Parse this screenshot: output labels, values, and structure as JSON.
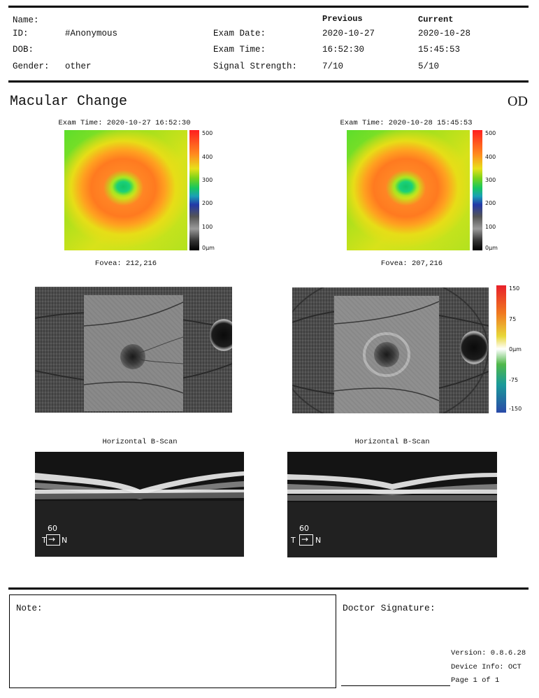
{
  "header": {
    "labels": {
      "name": "Name:",
      "id": "ID:",
      "dob": "DOB:",
      "gender": "Gender:",
      "exam_date": "Exam Date:",
      "exam_time": "Exam Time:",
      "signal_strength": "Signal Strength:"
    },
    "patient": {
      "name": "",
      "id": "#Anonymous",
      "dob": "",
      "gender": "other"
    },
    "previous": {
      "heading": "Previous",
      "exam_date": "2020-10-27",
      "exam_time": "16:52:30",
      "signal_strength": "7/10"
    },
    "current": {
      "heading": "Current",
      "exam_date": "2020-10-28",
      "exam_time": "15:45:53",
      "signal_strength": "5/10"
    }
  },
  "report": {
    "title": "Macular Change",
    "eye": "OD"
  },
  "thickness_maps": [
    {
      "exam_time_caption": "Exam Time: 2020-10-27 16:52:30",
      "fovea_caption": "Fovea: 212,216"
    },
    {
      "exam_time_caption": "Exam Time: 2020-10-28 15:45:53",
      "fovea_caption": "Fovea: 207,216"
    }
  ],
  "thickness_scale_labels": [
    "500",
    "400",
    "300",
    "200",
    "100",
    "0μm"
  ],
  "change_scale_labels": [
    "150",
    "75",
    "0μm",
    "-75",
    "-150"
  ],
  "bscans": [
    {
      "caption": "Horizontal B-Scan",
      "scale_value": "60",
      "temporal": "T",
      "nasal": "N"
    },
    {
      "caption": "Horizontal B-Scan",
      "scale_value": "60",
      "temporal": "T",
      "nasal": "N"
    }
  ],
  "footer": {
    "note_label": "Note:",
    "doctor_signature_label": "Doctor Signature:",
    "version": "Version: 0.8.6.28",
    "device_info": "Device Info: OCT",
    "page": "Page 1 of 1"
  }
}
